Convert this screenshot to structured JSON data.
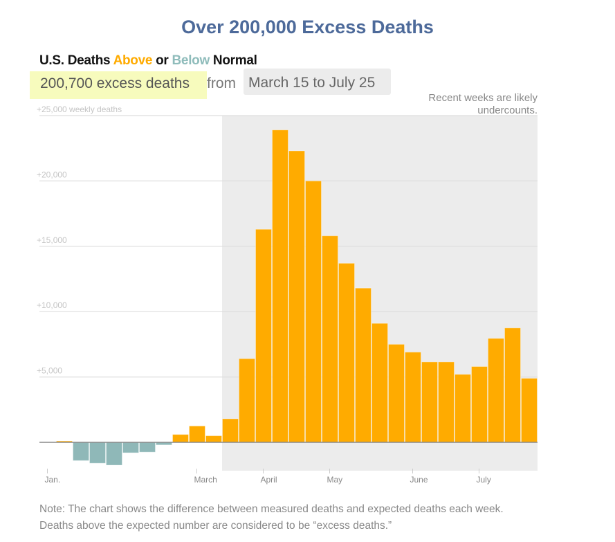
{
  "header": {
    "title": "Over 200,000 Excess Deaths",
    "subhead_pre": "U.S. Deaths ",
    "subhead_above": "Above",
    "subhead_mid": " or ",
    "subhead_below": "Below",
    "subhead_post": " Normal",
    "summary_highlight": "200,700 excess deaths",
    "summary_from": " from",
    "summary_range": "March 15 to July 25",
    "recent_note_line1": "Recent weeks are likely",
    "recent_note_line2": "undercounts."
  },
  "footer": {
    "note": "Note: The chart shows the difference between measured deaths and expected deaths each week. Deaths above the expected number are considered to be “excess deaths.”"
  },
  "colors": {
    "above": "#ffab00",
    "below": "#8fb8b8",
    "title": "#4d6a9a",
    "highlight": "#f7fbbd",
    "shaded_period": "#ececec"
  },
  "chart_data": {
    "type": "bar",
    "title": "U.S. Deaths Above or Below Normal",
    "ylabel": "weekly deaths",
    "xlabel": "",
    "ylim": [
      -2500,
      25000
    ],
    "yticks": [
      {
        "value": 25000,
        "label": "+25,000 weekly deaths"
      },
      {
        "value": 20000,
        "label": "+20,000"
      },
      {
        "value": 15000,
        "label": "+15,000"
      },
      {
        "value": 10000,
        "label": "+10,000"
      },
      {
        "value": 5000,
        "label": "+5,000"
      }
    ],
    "xticks": [
      {
        "week_index": 0.5,
        "label": "Jan."
      },
      {
        "week_index": 9.5,
        "label": "March"
      },
      {
        "week_index": 13.5,
        "label": "April"
      },
      {
        "week_index": 17.5,
        "label": "May"
      },
      {
        "week_index": 22.5,
        "label": "June"
      },
      {
        "week_index": 26.5,
        "label": "July"
      }
    ],
    "grid": true,
    "shaded_range": {
      "start_week_index": 11,
      "end_week_index": 30,
      "label": "March 15 to July 25"
    },
    "weeks": 30,
    "values": [
      0,
      100,
      -1400,
      -1600,
      -1750,
      -800,
      -750,
      -200,
      600,
      1250,
      500,
      1800,
      6400,
      16300,
      23900,
      22300,
      20000,
      15800,
      13700,
      11800,
      9100,
      7500,
      6900,
      6150,
      6150,
      5200,
      5800,
      7950,
      8750,
      4900
    ],
    "total_excess_label": "200,700 excess deaths"
  }
}
